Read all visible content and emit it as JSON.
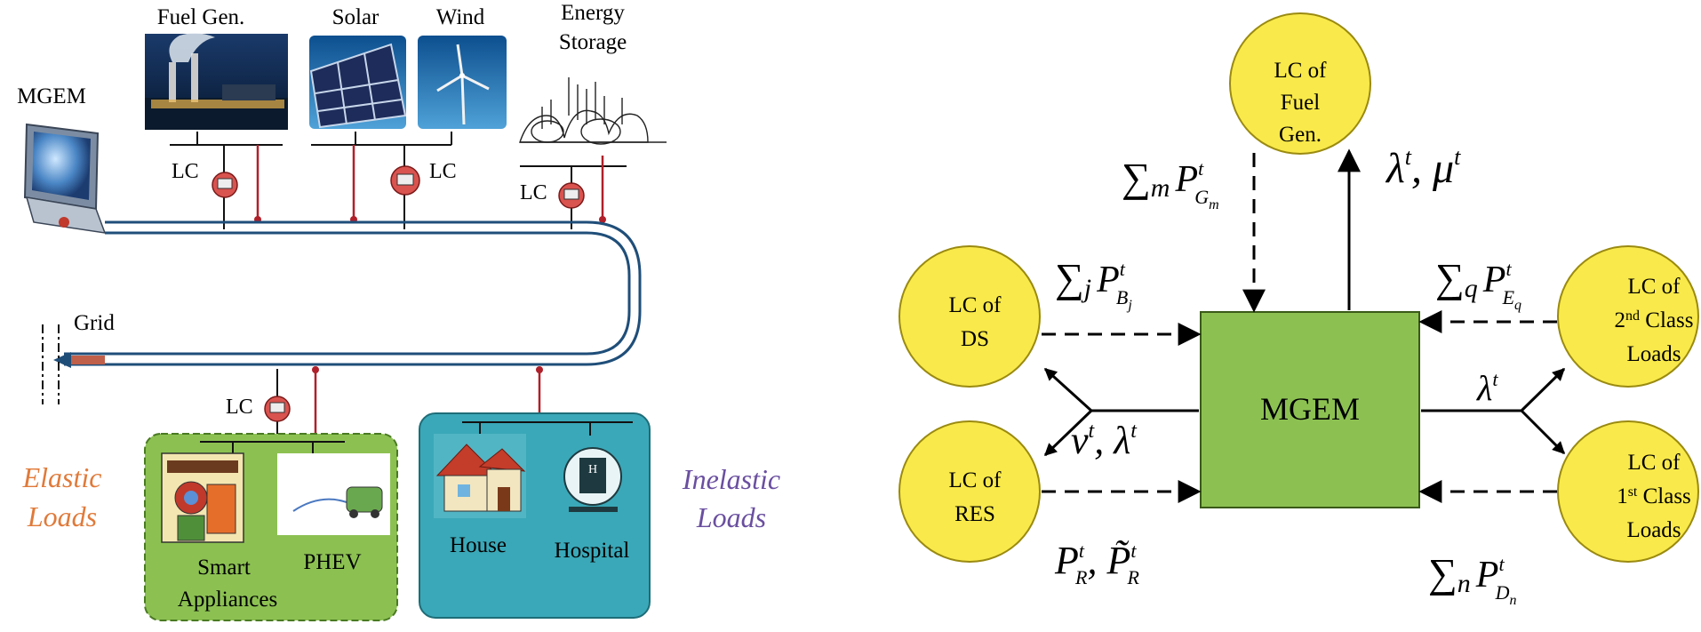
{
  "left_diagram": {
    "sources": {
      "fuel_gen": "Fuel Gen.",
      "solar": "Solar",
      "wind": "Wind",
      "energy_storage_line1": "Energy",
      "energy_storage_line2": "Storage"
    },
    "mgem": "MGEM",
    "grid": "Grid",
    "lc": "LC",
    "elastic_loads_line1": "Elastic",
    "elastic_loads_line2": "Loads",
    "inelastic_loads_line1": "Inelastic",
    "inelastic_loads_line2": "Loads",
    "smart_appliances_line1": "Smart",
    "smart_appliances_line2": "Appliances",
    "phev": "PHEV",
    "house": "House",
    "hospital": "Hospital",
    "colors": {
      "bus_line": "#1f4e79",
      "signal_line": "#b0202a",
      "elastic_box": "#8cc152",
      "inelastic_box": "#3aa8b8",
      "elastic_text": "#e07a3a",
      "inelastic_text": "#6a4fa0"
    }
  },
  "right_diagram": {
    "center": "MGEM",
    "circles": {
      "fuel_gen": [
        "LC of",
        "Fuel",
        "Gen."
      ],
      "ds": [
        "LC of",
        "DS"
      ],
      "res": [
        "LC of",
        "RES"
      ],
      "second_class": [
        "LC of",
        "2nd Class",
        "Loads"
      ],
      "first_class": [
        "LC of",
        "1st Class",
        "Loads"
      ]
    },
    "colors": {
      "circle_fill": "#f9e94a",
      "box_fill": "#8cc152"
    }
  }
}
